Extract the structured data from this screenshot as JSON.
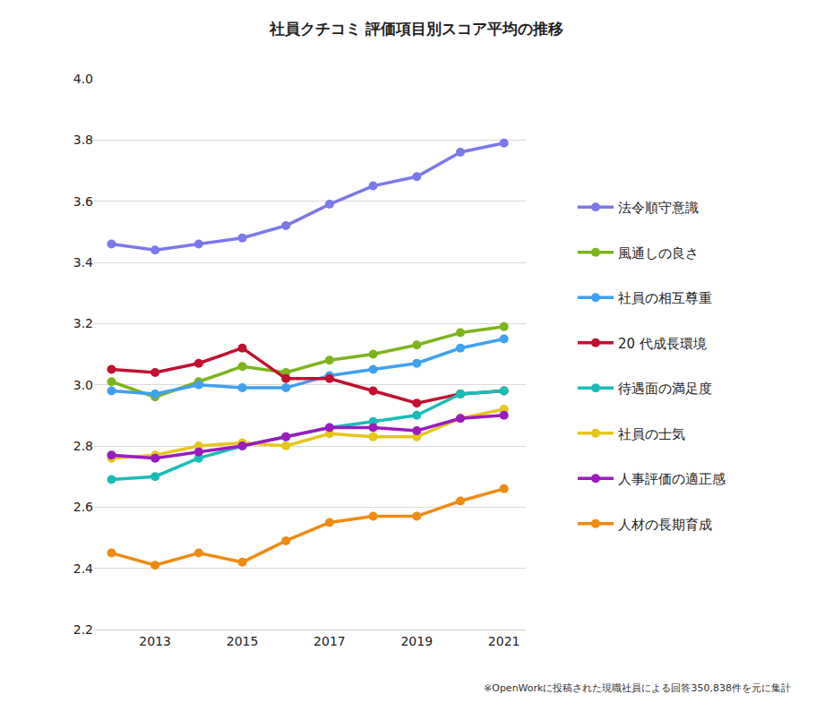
{
  "chart_data": {
    "type": "line",
    "title": "社員クチコミ 評価項目別スコア平均の推移",
    "note": "※OpenWorkに投稿された現職社員による回答350,838件を元に集計",
    "x": [
      2012,
      2013,
      2014,
      2015,
      2016,
      2017,
      2018,
      2019,
      2020,
      2021
    ],
    "xlim": [
      2011.6,
      2021.5
    ],
    "xticks": [
      2013,
      2015,
      2017,
      2019,
      2021
    ],
    "ylim": [
      2.2,
      4.0
    ],
    "yticks": [
      2.2,
      2.4,
      2.6,
      2.8,
      {
        "value": 3.0,
        "label": "3.0"
      },
      3.2,
      3.4,
      3.6,
      3.8,
      {
        "value": 4.0,
        "label": "4.0"
      }
    ],
    "grid": true,
    "legend": "right",
    "marker": "circle",
    "series": [
      {
        "name": "法令順守意識",
        "color": "#7b78ec",
        "values": [
          3.46,
          3.44,
          3.46,
          3.48,
          3.52,
          3.59,
          3.65,
          3.68,
          3.76,
          3.79
        ]
      },
      {
        "name": "風通しの良さ",
        "color": "#7db41c",
        "values": [
          3.01,
          2.96,
          3.01,
          3.06,
          3.04,
          3.08,
          3.1,
          3.13,
          3.17,
          3.19
        ]
      },
      {
        "name": "社員の相互尊重",
        "color": "#3fa0ef",
        "values": [
          2.98,
          2.97,
          3.0,
          2.99,
          2.99,
          3.03,
          3.05,
          3.07,
          3.12,
          3.15
        ]
      },
      {
        "name": "20 代成長環境",
        "color": "#c20f30",
        "values": [
          3.05,
          3.04,
          3.07,
          3.12,
          3.02,
          3.02,
          2.98,
          2.94,
          2.97,
          2.98
        ]
      },
      {
        "name": "待遇面の満足度",
        "color": "#19bdb8",
        "values": [
          2.69,
          2.7,
          2.76,
          2.8,
          2.83,
          2.86,
          2.88,
          2.9,
          2.97,
          2.98
        ]
      },
      {
        "name": "社員の士気",
        "color": "#e6c619",
        "values": [
          2.76,
          2.77,
          2.8,
          2.81,
          2.8,
          2.84,
          2.83,
          2.83,
          2.89,
          2.92
        ]
      },
      {
        "name": "人事評価の適正感",
        "color": "#9b1bbf",
        "values": [
          2.77,
          2.76,
          2.78,
          2.8,
          2.83,
          2.86,
          2.86,
          2.85,
          2.89,
          2.9
        ]
      },
      {
        "name": "人材の長期育成",
        "color": "#f08a12",
        "values": [
          2.45,
          2.41,
          2.45,
          2.42,
          2.49,
          2.55,
          2.57,
          2.57,
          2.62,
          2.66
        ]
      }
    ]
  }
}
